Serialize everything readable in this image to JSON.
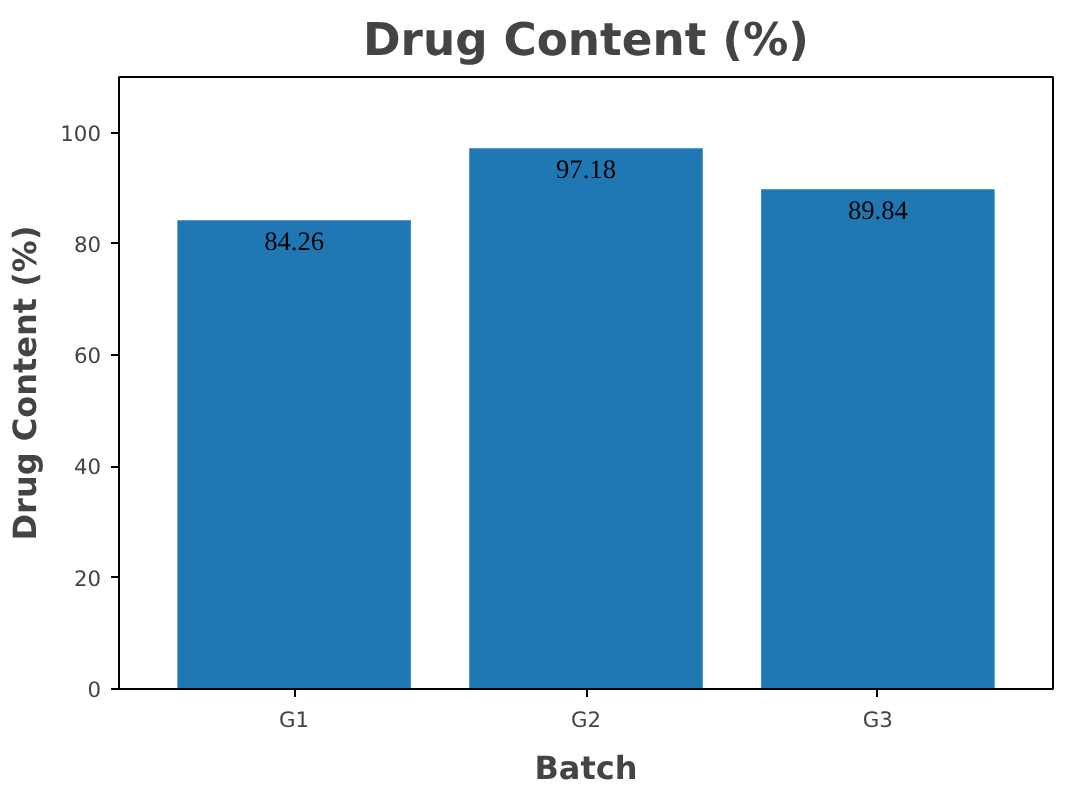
{
  "chart_data": {
    "type": "bar",
    "title": "Drug Content (%)",
    "xlabel": "Batch",
    "ylabel": "Drug Content (%)",
    "categories": [
      "G1",
      "G2",
      "G3"
    ],
    "values": [
      84.26,
      97.18,
      89.84
    ],
    "color": "#1f77b4",
    "ylim": [
      0,
      110
    ],
    "yticks": [
      0,
      20,
      40,
      60,
      80,
      100
    ],
    "grid": false,
    "data_labels": true
  }
}
